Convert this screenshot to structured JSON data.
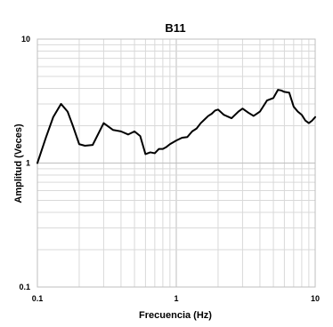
{
  "chart_data": {
    "type": "line",
    "title": "B11",
    "xlabel": "Frecuencia (Hz)",
    "ylabel": "Amplitud (Veces)",
    "xscale": "log",
    "yscale": "log",
    "xlim": [
      0.1,
      10
    ],
    "ylim": [
      0.1,
      10
    ],
    "x_ticks": [
      {
        "value": 0.1,
        "label": "0.1"
      },
      {
        "value": 1,
        "label": "1"
      },
      {
        "value": 10,
        "label": "10"
      }
    ],
    "y_ticks": [
      {
        "value": 10,
        "label": "10"
      },
      {
        "value": 1,
        "label": "1"
      },
      {
        "value": 0.1,
        "label": "0.1"
      }
    ],
    "grid": true,
    "legend": "none",
    "line_color": "#000000",
    "grid_color": "#d9d9d9",
    "series": [
      {
        "x": [
          0.1,
          0.115,
          0.13,
          0.148,
          0.165,
          0.18,
          0.2,
          0.22,
          0.25,
          0.3,
          0.35,
          0.4,
          0.45,
          0.5,
          0.55,
          0.6,
          0.65,
          0.7,
          0.75,
          0.8,
          0.85,
          0.9,
          1.0,
          1.1,
          1.2,
          1.3,
          1.4,
          1.5,
          1.6,
          1.7,
          1.8,
          1.9,
          2.0,
          2.2,
          2.5,
          2.8,
          3.0,
          3.3,
          3.6,
          4.0,
          4.5,
          5.0,
          5.4,
          5.7,
          6.0,
          6.5,
          7.0,
          7.5,
          8.0,
          8.5,
          9.0,
          9.5,
          10.0
        ],
        "y": [
          1.0,
          1.6,
          2.35,
          3.0,
          2.6,
          2.0,
          1.42,
          1.38,
          1.4,
          2.1,
          1.85,
          1.8,
          1.7,
          1.8,
          1.65,
          1.18,
          1.22,
          1.2,
          1.3,
          1.3,
          1.35,
          1.42,
          1.52,
          1.6,
          1.62,
          1.8,
          1.9,
          2.1,
          2.25,
          2.4,
          2.5,
          2.65,
          2.7,
          2.45,
          2.3,
          2.6,
          2.75,
          2.55,
          2.4,
          2.6,
          3.2,
          3.35,
          3.9,
          3.85,
          3.75,
          3.7,
          2.85,
          2.6,
          2.45,
          2.2,
          2.1,
          2.2,
          2.35
        ]
      }
    ]
  }
}
